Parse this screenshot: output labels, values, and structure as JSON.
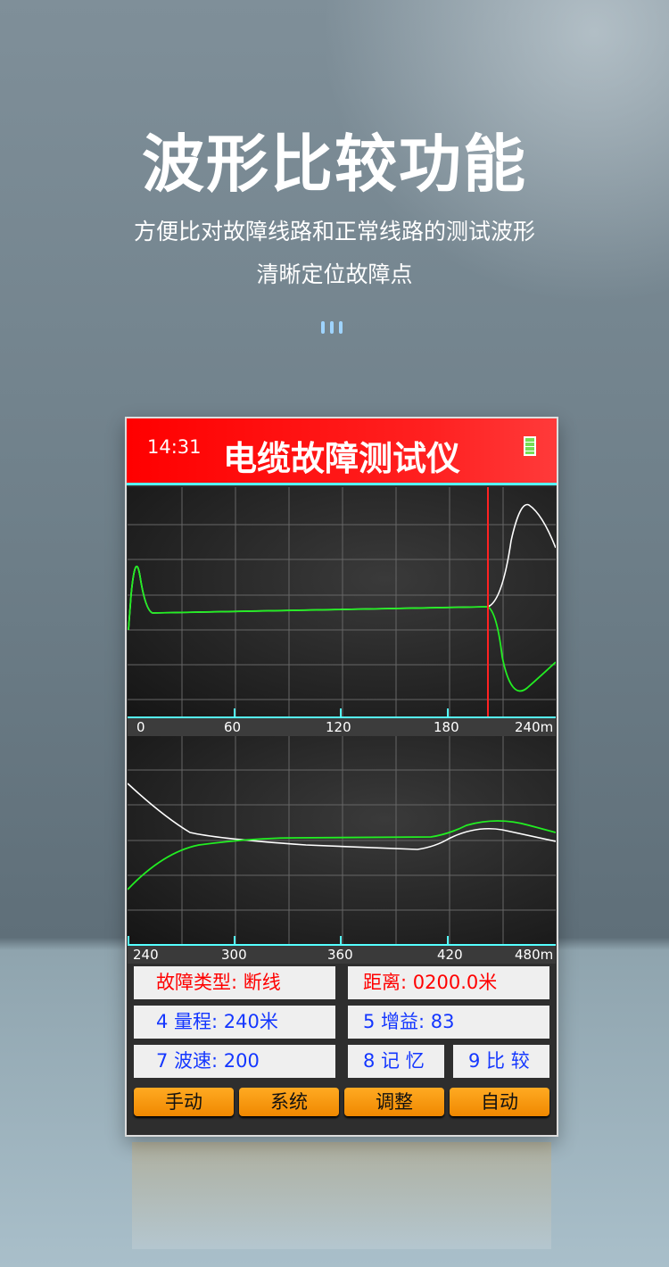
{
  "hero": {
    "title": "波形比较功能",
    "subtitle_line1": "方便比对故障线路和正常线路的测试波形",
    "subtitle_line2": "清晰定位故障点"
  },
  "device": {
    "time": "14:31",
    "title": "电缆故障测试仪",
    "battery_icon": "battery-full-icon",
    "plot1_axis": [
      "0",
      "60",
      "120",
      "180",
      "240m"
    ],
    "plot2_axis": [
      "240",
      "300",
      "360",
      "420",
      "480m"
    ],
    "fault_type": "故障类型: 断线",
    "distance": "距离: 0200.0米",
    "range": "4 量程: 240米",
    "gain": "5 增益: 83",
    "speed": "7 波速: 200",
    "memory": "8 记 忆",
    "compare": "9 比 较",
    "buttons": [
      "手动",
      "系统",
      "调整",
      "自动"
    ],
    "colors": {
      "header": "#ff0000",
      "cursor": "#ff2020",
      "trace_reference": "#ffffff",
      "trace_compare": "#22ee22",
      "accent_line": "#55ffff",
      "button": "#f59a10"
    }
  }
}
